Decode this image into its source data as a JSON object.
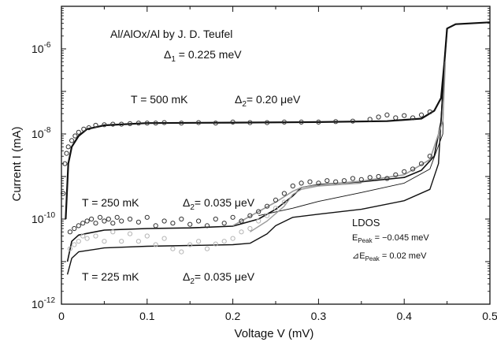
{
  "chart_data": {
    "type": "scatter",
    "title": "Al/AlOx/Al  by J. D. Teufel",
    "xlabel": "Voltage V (mV)",
    "ylabel": "Current I (mA)",
    "xlim": [
      0,
      0.5
    ],
    "ylim": [
      1e-12,
      1e-05
    ],
    "yscale": "log",
    "grid": false,
    "x_ticks": [
      "0",
      "0.1",
      "0.2",
      "0.3",
      "0.4",
      "0.5"
    ],
    "y_ticks": [
      {
        "base": "10",
        "exp": "-6",
        "value": 1e-06
      },
      {
        "base": "10",
        "exp": "-8",
        "value": 1e-08
      },
      {
        "base": "10",
        "exp": "-10",
        "value": 1e-10
      },
      {
        "base": "10",
        "exp": "-12",
        "value": 1e-12
      }
    ],
    "annotations": {
      "delta1": {
        "sym": "Δ",
        "sub": "1",
        "rest": " = 0.225 meV"
      },
      "t500": {
        "temp": "T = 500 mK",
        "sym": "Δ",
        "sub": "2",
        "rest": "= 0.20 μeV"
      },
      "t250": {
        "temp": "T = 250 mK",
        "sym": "Δ",
        "sub": "2",
        "rest": "= 0.035 μeV"
      },
      "t225": {
        "temp": "T = 225 mK",
        "sym": "Δ",
        "sub": "2",
        "rest": "= 0.035 μeV"
      },
      "ldos": {
        "title": "LDOS",
        "line1": {
          "pre": "E",
          "sub": "Peak",
          "rest": " = −0.045 meV"
        },
        "line2": {
          "pre": "⊿E",
          "sub": "Peak",
          "rest": " = 0.02 meV"
        }
      }
    },
    "series": [
      {
        "color": "#111111",
        "style": "line",
        "width": 2.2,
        "points": [
          [
            0.005,
            1e-10
          ],
          [
            0.008,
            2e-09
          ],
          [
            0.012,
            5e-09
          ],
          [
            0.02,
            9e-09
          ],
          [
            0.03,
            1.3e-08
          ],
          [
            0.05,
            1.6e-08
          ],
          [
            0.1,
            1.8e-08
          ],
          [
            0.2,
            1.85e-08
          ],
          [
            0.3,
            1.9e-08
          ],
          [
            0.38,
            2e-08
          ],
          [
            0.42,
            2.3e-08
          ],
          [
            0.435,
            3.5e-08
          ],
          [
            0.443,
            7e-08
          ],
          [
            0.447,
            5e-07
          ],
          [
            0.45,
            3e-06
          ],
          [
            0.46,
            3.8e-06
          ],
          [
            0.5,
            4.2e-06
          ]
        ]
      },
      {
        "color": "#111111",
        "style": "line",
        "width": 1.6,
        "points": [
          [
            0.007,
            1e-11
          ],
          [
            0.012,
            3e-11
          ],
          [
            0.02,
            4.2e-11
          ],
          [
            0.05,
            5.5e-11
          ],
          [
            0.1,
            6e-11
          ],
          [
            0.15,
            6.2e-11
          ],
          [
            0.2,
            6.8e-11
          ],
          [
            0.23,
            1e-10
          ],
          [
            0.25,
            1.7e-10
          ],
          [
            0.27,
            3.5e-10
          ],
          [
            0.28,
            5.5e-10
          ],
          [
            0.3,
            6.5e-10
          ],
          [
            0.35,
            7.5e-10
          ],
          [
            0.4,
            9.5e-10
          ],
          [
            0.42,
            1.4e-09
          ],
          [
            0.435,
            3e-09
          ],
          [
            0.443,
            2e-08
          ],
          [
            0.447,
            5e-07
          ],
          [
            0.45,
            3e-06
          ]
        ]
      },
      {
        "color": "#111111",
        "style": "line",
        "width": 1.4,
        "points": [
          [
            0.007,
            5e-12
          ],
          [
            0.012,
            1.2e-11
          ],
          [
            0.02,
            1.7e-11
          ],
          [
            0.05,
            2.1e-11
          ],
          [
            0.1,
            2.3e-11
          ],
          [
            0.15,
            2.4e-11
          ],
          [
            0.2,
            2.5e-11
          ],
          [
            0.22,
            2.7e-11
          ],
          [
            0.24,
            4.5e-11
          ],
          [
            0.25,
            7e-11
          ],
          [
            0.27,
            1.1e-10
          ],
          [
            0.3,
            1.3e-10
          ],
          [
            0.35,
            1.7e-10
          ],
          [
            0.4,
            2.7e-10
          ],
          [
            0.43,
            5e-10
          ],
          [
            0.44,
            2e-09
          ],
          [
            0.447,
            5e-07
          ],
          [
            0.45,
            3e-06
          ]
        ]
      },
      {
        "color": "#111111",
        "style": "line",
        "width": 0.9,
        "points": [
          [
            0.23,
            1.2e-10
          ],
          [
            0.27,
            1.8e-10
          ],
          [
            0.3,
            2.6e-10
          ],
          [
            0.35,
            4.2e-10
          ],
          [
            0.4,
            7e-10
          ],
          [
            0.43,
            1.5e-09
          ],
          [
            0.445,
            1e-08
          ],
          [
            0.447,
            5e-07
          ]
        ]
      },
      {
        "color": "#9a9a9a",
        "style": "line",
        "width": 1.6,
        "points": [
          [
            0.2,
            7e-11
          ],
          [
            0.23,
            1.5e-10
          ],
          [
            0.25,
            2.5e-10
          ],
          [
            0.27,
            4.5e-10
          ],
          [
            0.28,
            5.5e-10
          ],
          [
            0.3,
            6.3e-10
          ],
          [
            0.35,
            7.8e-10
          ],
          [
            0.4,
            1.1e-09
          ],
          [
            0.43,
            2.5e-09
          ],
          [
            0.445,
            2e-08
          ],
          [
            0.448,
            5e-07
          ]
        ]
      },
      {
        "color": "#9a9a9a",
        "style": "line",
        "width": 1.4,
        "points": [
          [
            0.22,
            5e-11
          ],
          [
            0.24,
            9e-11
          ],
          [
            0.26,
            2e-10
          ],
          [
            0.27,
            3.8e-10
          ],
          [
            0.28,
            5e-10
          ],
          [
            0.3,
            6e-10
          ],
          [
            0.35,
            7e-10
          ]
        ]
      },
      {
        "color": "#333333",
        "style": "markers",
        "points": [
          [
            0.002,
            4e-10
          ],
          [
            0.004,
            2e-09
          ],
          [
            0.006,
            3.5e-09
          ],
          [
            0.008,
            5e-09
          ],
          [
            0.012,
            7e-09
          ],
          [
            0.016,
            9e-09
          ],
          [
            0.02,
            1.1e-08
          ],
          [
            0.026,
            1.3e-08
          ],
          [
            0.032,
            1.4e-08
          ],
          [
            0.04,
            1.6e-08
          ],
          [
            0.05,
            1.65e-08
          ],
          [
            0.06,
            1.7e-08
          ],
          [
            0.07,
            1.7e-08
          ],
          [
            0.08,
            1.75e-08
          ],
          [
            0.09,
            1.8e-08
          ],
          [
            0.1,
            1.8e-08
          ],
          [
            0.11,
            1.8e-08
          ],
          [
            0.12,
            1.85e-08
          ],
          [
            0.14,
            1.8e-08
          ],
          [
            0.16,
            1.85e-08
          ],
          [
            0.18,
            1.8e-08
          ],
          [
            0.2,
            1.9e-08
          ],
          [
            0.22,
            1.85e-08
          ],
          [
            0.24,
            1.85e-08
          ],
          [
            0.26,
            1.9e-08
          ],
          [
            0.28,
            1.9e-08
          ],
          [
            0.3,
            1.9e-08
          ],
          [
            0.32,
            1.95e-08
          ],
          [
            0.34,
            2e-08
          ],
          [
            0.36,
            2.2e-08
          ],
          [
            0.37,
            2.5e-08
          ],
          [
            0.38,
            2.8e-08
          ],
          [
            0.39,
            2.4e-08
          ],
          [
            0.4,
            2.7e-08
          ],
          [
            0.41,
            2.4e-08
          ],
          [
            0.42,
            2.8e-08
          ],
          [
            0.43,
            3.3e-08
          ]
        ]
      },
      {
        "color": "#333333",
        "style": "markers",
        "points": [
          [
            0.01,
            5e-11
          ],
          [
            0.015,
            6e-11
          ],
          [
            0.02,
            7e-11
          ],
          [
            0.025,
            8e-11
          ],
          [
            0.03,
            9e-11
          ],
          [
            0.035,
            1e-10
          ],
          [
            0.04,
            8e-11
          ],
          [
            0.045,
            1.1e-10
          ],
          [
            0.05,
            9e-11
          ],
          [
            0.055,
            1e-10
          ],
          [
            0.06,
            8e-11
          ],
          [
            0.065,
            1.1e-10
          ],
          [
            0.07,
            9e-11
          ],
          [
            0.08,
            1e-10
          ],
          [
            0.09,
            8.5e-11
          ],
          [
            0.1,
            1.1e-10
          ],
          [
            0.11,
            7e-11
          ],
          [
            0.12,
            9e-11
          ],
          [
            0.13,
            8e-11
          ],
          [
            0.14,
            1e-10
          ],
          [
            0.15,
            7.5e-11
          ],
          [
            0.16,
            9e-11
          ],
          [
            0.17,
            7e-11
          ],
          [
            0.18,
            1e-10
          ],
          [
            0.19,
            8e-11
          ],
          [
            0.2,
            1.1e-10
          ],
          [
            0.21,
            9e-11
          ],
          [
            0.22,
            1.2e-10
          ],
          [
            0.23,
            1.5e-10
          ],
          [
            0.24,
            2e-10
          ],
          [
            0.25,
            2.8e-10
          ],
          [
            0.26,
            4e-10
          ],
          [
            0.27,
            6e-10
          ],
          [
            0.28,
            7e-10
          ],
          [
            0.29,
            7.5e-10
          ],
          [
            0.3,
            7e-10
          ],
          [
            0.31,
            8e-10
          ],
          [
            0.32,
            7.5e-10
          ],
          [
            0.33,
            8e-10
          ],
          [
            0.34,
            9e-10
          ],
          [
            0.35,
            8.5e-10
          ],
          [
            0.36,
            9.5e-10
          ],
          [
            0.37,
            1e-09
          ],
          [
            0.38,
            9e-10
          ],
          [
            0.39,
            1.1e-09
          ],
          [
            0.4,
            1.3e-09
          ],
          [
            0.41,
            1.5e-09
          ],
          [
            0.42,
            2e-09
          ],
          [
            0.43,
            3e-09
          ]
        ]
      },
      {
        "color": "#b5b5b5",
        "style": "markers",
        "points": [
          [
            0.01,
            2e-11
          ],
          [
            0.015,
            2.5e-11
          ],
          [
            0.02,
            3e-11
          ],
          [
            0.025,
            4e-11
          ],
          [
            0.03,
            3.5e-11
          ],
          [
            0.04,
            4e-11
          ],
          [
            0.05,
            3e-11
          ],
          [
            0.06,
            5e-11
          ],
          [
            0.07,
            3e-11
          ],
          [
            0.08,
            4.5e-11
          ],
          [
            0.09,
            3e-11
          ],
          [
            0.1,
            4e-11
          ],
          [
            0.11,
            2.5e-11
          ],
          [
            0.12,
            3.5e-11
          ],
          [
            0.13,
            2e-11
          ],
          [
            0.14,
            1.7e-11
          ],
          [
            0.15,
            2.5e-11
          ],
          [
            0.16,
            3e-11
          ],
          [
            0.17,
            2e-11
          ],
          [
            0.18,
            2.6e-11
          ],
          [
            0.19,
            3e-11
          ],
          [
            0.2,
            3.5e-11
          ],
          [
            0.21,
            5e-11
          ],
          [
            0.22,
            6e-11
          ],
          [
            0.23,
            9e-11
          ],
          [
            0.24,
            1.2e-10
          ],
          [
            0.25,
            1.8e-10
          ],
          [
            0.26,
            2.5e-10
          ]
        ]
      }
    ]
  }
}
